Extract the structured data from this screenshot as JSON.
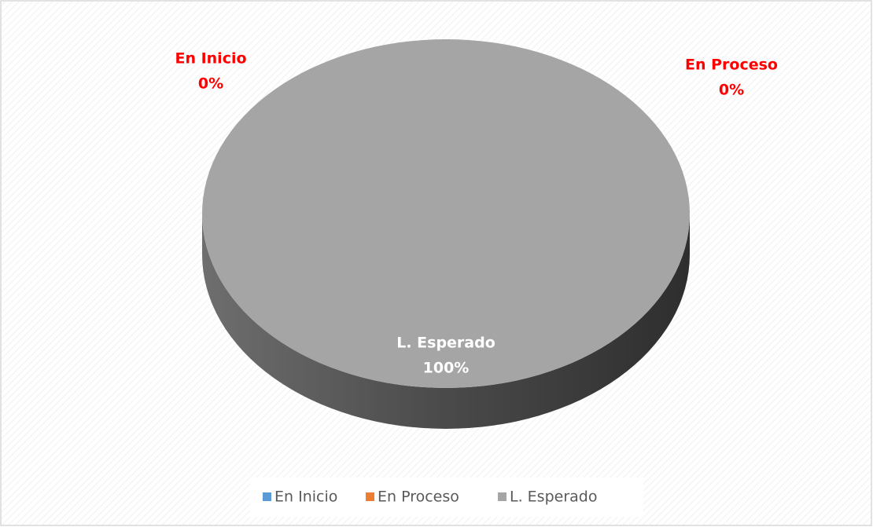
{
  "chart_data": {
    "type": "pie",
    "categories": [
      "En Inicio",
      "En Proceso",
      "L. Esperado"
    ],
    "values": [
      0,
      0,
      100
    ],
    "value_labels": [
      "0%",
      "0%",
      "100%"
    ],
    "colors": [
      "#5b9bd5",
      "#ed7d31",
      "#a5a5a5"
    ],
    "legend": "bottom"
  }
}
